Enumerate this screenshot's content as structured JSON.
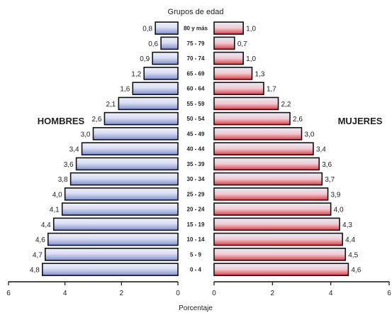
{
  "chart_data": {
    "type": "bar",
    "title": "Grupos de edad",
    "xlabel": "Porcentaje",
    "xlim": [
      0,
      6
    ],
    "x_ticks": [
      "6",
      "4",
      "2",
      "0",
      "0",
      "2",
      "4",
      "6"
    ],
    "categories": [
      "80 y más",
      "75 - 79",
      "70 - 74",
      "65 - 69",
      "60 - 64",
      "55 - 59",
      "50 - 54",
      "45 - 49",
      "40 - 44",
      "35 - 39",
      "30 - 34",
      "25 - 29",
      "20 - 24",
      "15 - 19",
      "10 - 14",
      "5 - 9",
      "0 - 4"
    ],
    "series": [
      {
        "name": "HOMBRES",
        "side": "left",
        "values": [
          0.8,
          0.6,
          0.9,
          1.2,
          1.6,
          2.1,
          2.6,
          3.0,
          3.4,
          3.6,
          3.8,
          4.0,
          4.1,
          4.4,
          4.6,
          4.7,
          4.8
        ],
        "labels": [
          "0,8",
          "0,6",
          "0,9",
          "1,2",
          "1,6",
          "2,1",
          "2,6",
          "3,0",
          "3,4",
          "3,6",
          "3,8",
          "4,0",
          "4,1",
          "4,4",
          "4,6",
          "4,7",
          "4,8"
        ]
      },
      {
        "name": "MUJERES",
        "side": "right",
        "values": [
          1.0,
          0.7,
          1.0,
          1.3,
          1.7,
          2.2,
          2.6,
          3.0,
          3.4,
          3.6,
          3.7,
          3.9,
          4.0,
          4.3,
          4.4,
          4.5,
          4.6
        ],
        "labels": [
          "1,0",
          "0,7",
          "1,0",
          "1,3",
          "1,7",
          "2,2",
          "2,6",
          "3,0",
          "3,4",
          "3,6",
          "3,7",
          "3,9",
          "4,0",
          "4,3",
          "4,4",
          "4,5",
          "4,6"
        ]
      }
    ],
    "colors": {
      "men": "#7f8fd0",
      "men_light": "#eef0fb",
      "women": "#e23a48",
      "women_light": "#e8ecfb",
      "outline": "#111111"
    },
    "grid": false,
    "legend": "inline"
  }
}
